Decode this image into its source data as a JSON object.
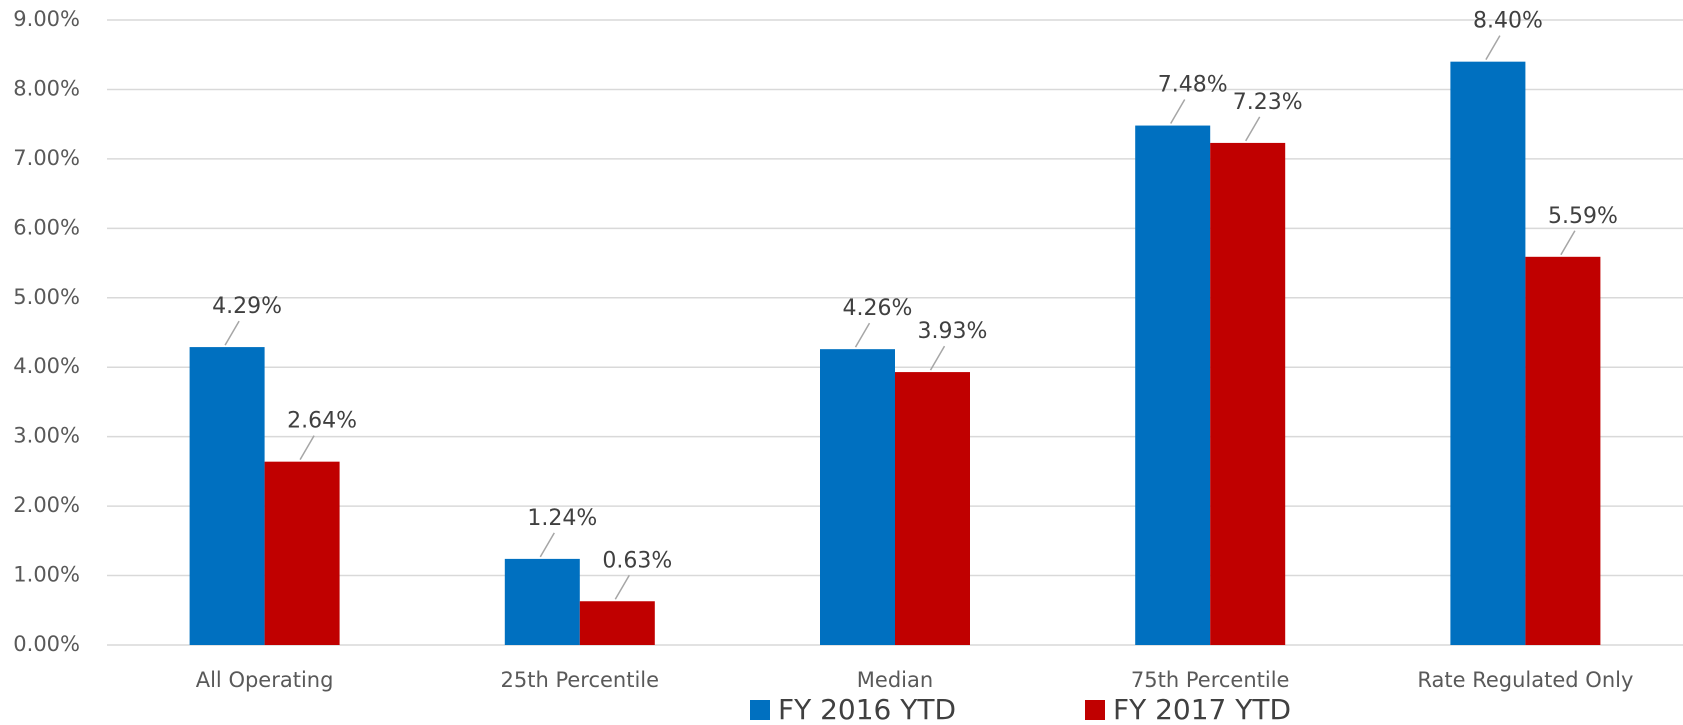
{
  "chart_data": {
    "type": "bar",
    "categories": [
      "All Operating",
      "25th Percentile",
      "Median",
      "75th Percentile",
      "Rate Regulated Only"
    ],
    "series": [
      {
        "name": "FY 2016 YTD",
        "color": "#0070c0",
        "values": [
          4.29,
          1.24,
          4.26,
          7.48,
          8.4
        ],
        "value_labels": [
          "4.29%",
          "1.24%",
          "4.26%",
          "7.48%",
          "8.40%"
        ]
      },
      {
        "name": "FY 2017 YTD",
        "color": "#c00000",
        "values": [
          2.64,
          0.63,
          3.93,
          7.23,
          5.59
        ],
        "value_labels": [
          "2.64%",
          "0.63%",
          "3.93%",
          "7.23%",
          "5.59%"
        ]
      }
    ],
    "ylim": [
      0,
      9
    ],
    "yticks": [
      {
        "value": 0,
        "label": "0.00%"
      },
      {
        "value": 1,
        "label": "1.00%"
      },
      {
        "value": 2,
        "label": "2.00%"
      },
      {
        "value": 3,
        "label": "3.00%"
      },
      {
        "value": 4,
        "label": "4.00%"
      },
      {
        "value": 5,
        "label": "5.00%"
      },
      {
        "value": 6,
        "label": "6.00%"
      },
      {
        "value": 7,
        "label": "7.00%"
      },
      {
        "value": 8,
        "label": "8.00%"
      },
      {
        "value": 9,
        "label": "9.00%"
      }
    ],
    "grid": true,
    "legend": "bottom"
  }
}
